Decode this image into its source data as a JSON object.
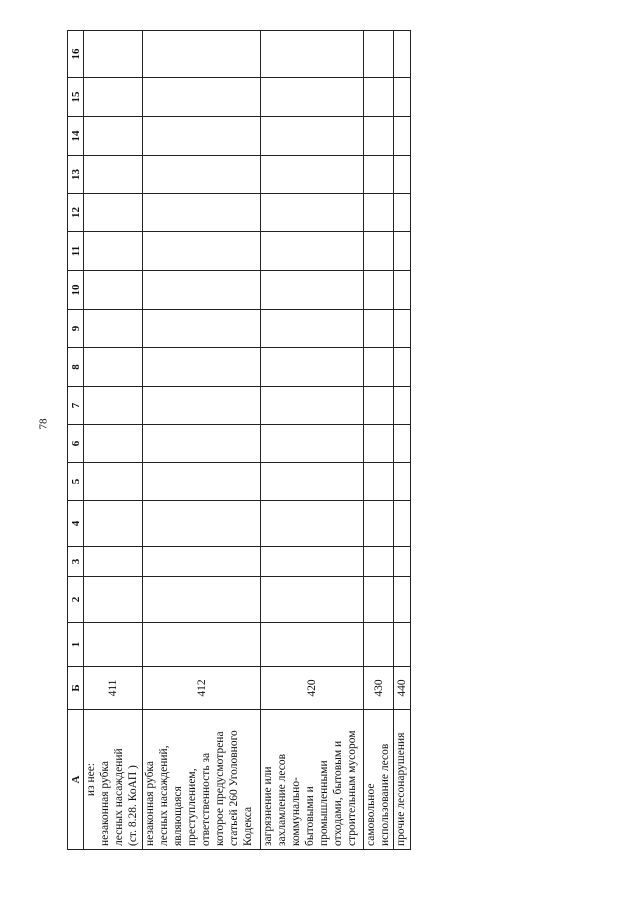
{
  "page_number": "78",
  "table": {
    "headers": [
      "А",
      "Б",
      "1",
      "2",
      "3",
      "4",
      "5",
      "6",
      "7",
      "8",
      "9",
      "10",
      "11",
      "12",
      "13",
      "14",
      "15",
      "16"
    ],
    "rows": [
      {
        "code": "411",
        "lines": [
          "из нее:",
          "незаконная рубка",
          "лесных насаждений",
          "(ст. 8.28. КоАП )"
        ]
      },
      {
        "code": "412",
        "lines": [
          "незаконная рубка",
          "лесных насаждений,",
          "являющаяся",
          "преступлением,",
          "ответственность за",
          "которое предусмотрена",
          "статьей 260 Уголовного",
          "Кодекса"
        ]
      },
      {
        "code": "420",
        "lines": [
          "загрязнение или",
          "захламление лесов",
          "коммунально-",
          "бытовыми и",
          "промышленными",
          "отходами, бытовым и",
          "строительным мусором"
        ]
      },
      {
        "code": "430",
        "lines": [
          "самовольное",
          "использование лесов"
        ]
      },
      {
        "code": "440",
        "lines": [
          "прочие лесонарушения"
        ]
      }
    ]
  }
}
